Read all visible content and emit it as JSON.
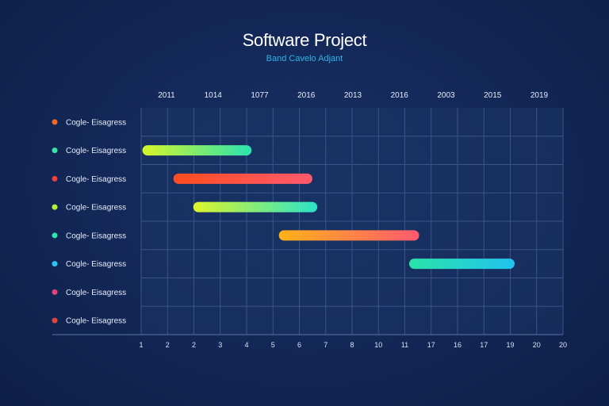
{
  "title": "Software Project",
  "subtitle": "Band Cavelo Adjant",
  "chart_data": {
    "type": "gantt",
    "top_ticks": [
      "2011",
      "1014",
      "1077",
      "2016",
      "2013",
      "2016",
      "2003",
      "2015",
      "2019"
    ],
    "bottom_ticks": [
      "1",
      "2",
      "2",
      "3",
      "4",
      "5",
      "6",
      "7",
      "8",
      "10",
      "11",
      "17",
      "16",
      "17",
      "19",
      "20",
      "20"
    ],
    "x_range": [
      0,
      17
    ],
    "grid": true,
    "tasks": [
      {
        "label": "Cogle- Eisagress",
        "dot": "#f26b21"
      },
      {
        "label": "Cogle- Eisagress",
        "dot": "#3de2a8",
        "start": 0.05,
        "end": 4.45,
        "grad": [
          "#d6f52a",
          "#2ae3b0"
        ]
      },
      {
        "label": "Cogle- Eisagress",
        "dot": "#f0413d",
        "start": 1.3,
        "end": 6.9,
        "grad": [
          "#ff4d1f",
          "#ff5a6e"
        ]
      },
      {
        "label": "Cogle- Eisagress",
        "dot": "#b5f03a",
        "start": 2.1,
        "end": 7.1,
        "grad": [
          "#dff52a",
          "#2ae3c8"
        ]
      },
      {
        "label": "Cogle- Eisagress",
        "dot": "#2ee3b0",
        "start": 5.55,
        "end": 11.2,
        "grad": [
          "#ffb21a",
          "#ff5a6e"
        ]
      },
      {
        "label": "Cogle- Eisagress",
        "dot": "#2ec4f0",
        "start": 10.8,
        "end": 15.05,
        "grad": [
          "#2ae3a8",
          "#22c3f0"
        ]
      },
      {
        "label": "Cogle- Eisagress",
        "dot": "#e0457a"
      },
      {
        "label": "Cogle- Eisagress",
        "dot": "#e0453a"
      }
    ]
  }
}
